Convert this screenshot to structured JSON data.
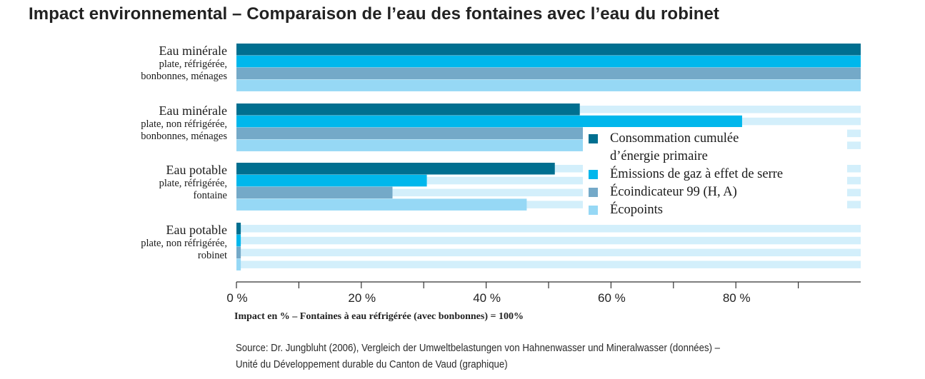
{
  "title": "Impact environnemental – Comparaison de l’eau des fontaines avec l’eau du robinet",
  "chart_data": {
    "type": "bar",
    "orientation": "horizontal",
    "categories": [
      {
        "main": "Eau minérale",
        "sub": [
          "plate, réfrigérée,",
          "bonbonnes, ménages"
        ]
      },
      {
        "main": "Eau minérale",
        "sub": [
          "plate, non réfrigérée,",
          "bonbonnes, ménages"
        ]
      },
      {
        "main": "Eau potable",
        "sub": [
          "plate, réfrigérée,",
          "fontaine"
        ]
      },
      {
        "main": "Eau potable",
        "sub": [
          "plate, non réfrigérée,",
          "robinet"
        ]
      }
    ],
    "series": [
      {
        "name": "Consommation cumulée d’énergie primaire",
        "color": "#006f90",
        "values": [
          100,
          55,
          51,
          0.7
        ]
      },
      {
        "name": "Émissions de gaz à effet de serre",
        "color": "#00b7ec",
        "values": [
          100,
          81,
          30.5,
          0.7
        ]
      },
      {
        "name": "Écoindicateur 99 (H, A)",
        "color": "#74a9c8",
        "values": [
          100,
          56,
          25,
          0.7
        ]
      },
      {
        "name": "Écopoints",
        "color": "#96d8f5",
        "values": [
          100,
          56,
          46.5,
          0.7
        ]
      }
    ],
    "xticks": [
      0,
      20,
      40,
      60,
      80
    ],
    "xtick_labels": [
      "0 %",
      "20 %",
      "40 %",
      "60 %",
      "80 %"
    ],
    "xlim": [
      0,
      100
    ],
    "xlabel": "Impact en % – Fontaines à eau réfrigérée (avec bonbonnes) = 100%",
    "background_track_color": "#d3effb",
    "legend_position": "right"
  },
  "source": [
    "Source: Dr. Jungbluht (2006), Vergleich der Umweltbelastungen von Hahnenwasser und Mineralwasser (données) –",
    "Unité du Développement durable du Canton de Vaud (graphique)"
  ]
}
